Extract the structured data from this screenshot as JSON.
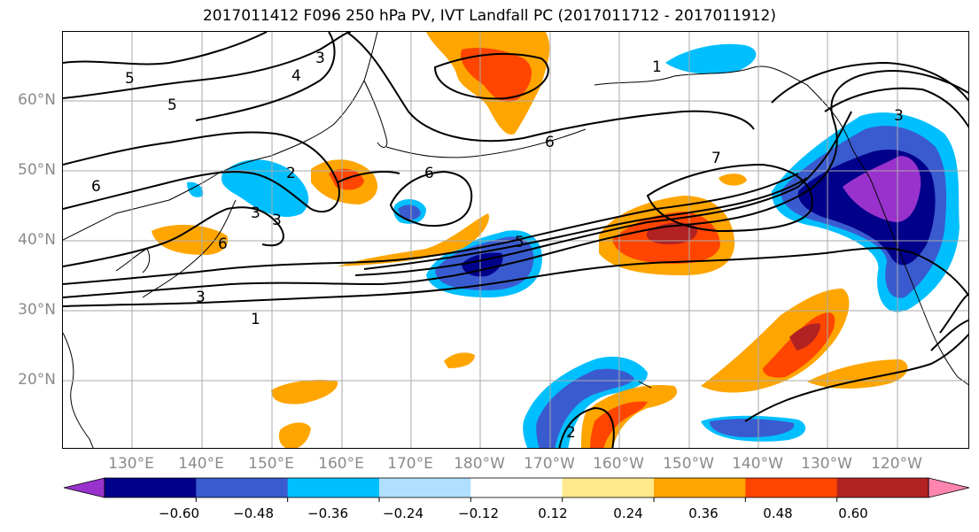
{
  "title": "2017011412 F096 250 hPa PV, IVT Landfall PC (2017011712 - 2017011912)",
  "map": {
    "latitude_labels": [
      "60°N",
      "50°N",
      "40°N",
      "30°N",
      "20°N"
    ],
    "longitude_labels": [
      "130°E",
      "140°E",
      "150°E",
      "160°E",
      "170°E",
      "180°W",
      "170°W",
      "160°W",
      "150°W",
      "140°W",
      "130°W",
      "120°W"
    ],
    "contour_labels": [
      "5",
      "4",
      "3",
      "5",
      "6",
      "6",
      "7",
      "6",
      "3",
      "2",
      "3",
      "6",
      "1",
      "3",
      "5",
      "1",
      "2",
      "3"
    ]
  },
  "colorbar": {
    "tick_labels": [
      "−0.60",
      "−0.48",
      "−0.36",
      "−0.24",
      "−0.12",
      "0.12",
      "0.24",
      "0.36",
      "0.48",
      "0.60"
    ],
    "colors": [
      "#9932cc",
      "#00008b",
      "#3a5bcf",
      "#00bfff",
      "#b0e0ff",
      "#ffffff",
      "#ffe98a",
      "#ffa500",
      "#ff4500",
      "#b22222",
      "#ff85b0"
    ]
  },
  "colors": {
    "contour": "#000000",
    "grid": "#aaaaaa",
    "coastline": "#000000"
  }
}
